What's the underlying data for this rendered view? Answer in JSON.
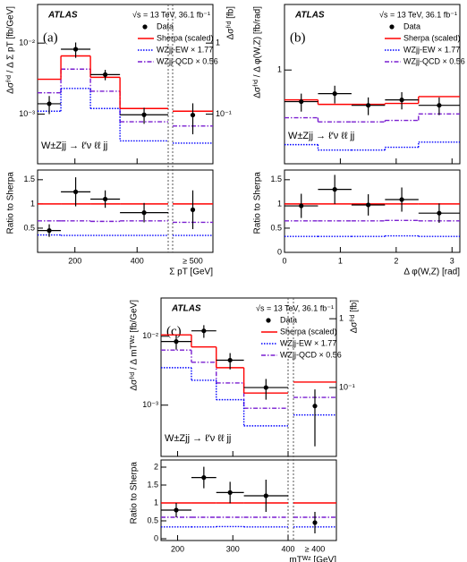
{
  "chart_data": [
    {
      "type": "histogram",
      "log_y": true,
      "label": "(a)",
      "experiment": "ATLAS",
      "energy": "√s = 13 TeV, 36.1 fb⁻¹",
      "process": "W±Zjj → ℓ′ν ℓℓ jj",
      "ylabel": "Δσᶠⁱᵈ / Δ Σ pT [fb/GeV]",
      "y2label": "Δσᶠⁱᵈ [fb]",
      "xlabel": "Σ pT [GeV]",
      "ratio_ylabel": "Ratio to Sherpa",
      "bins": [
        80,
        155,
        250,
        345,
        500
      ],
      "xlim": [
        80,
        500
      ],
      "xticks": [
        200,
        400
      ],
      "overflow_label": "≥ 500",
      "ylim": [
        0.0002,
        0.035
      ],
      "yticks": [
        {
          "value": 0.001,
          "label": "10⁻³"
        },
        {
          "value": 0.01,
          "label": "10⁻²"
        }
      ],
      "y2lim": [
        0.02,
        3.5
      ],
      "y2ticks": [
        {
          "value": 0.1,
          "label": "10⁻¹"
        },
        1
      ],
      "series": [
        {
          "name": "Data",
          "color": "#000000",
          "marker": "circle",
          "values": [
            0.0014,
            0.0082,
            0.0036,
            0.00098
          ],
          "errors": [
            0.0004,
            0.002,
            0.0006,
            0.00025
          ],
          "overflow": 0.097,
          "overflow_error": 0.045
        },
        {
          "name": "Sherpa (scaled)",
          "color": "#ff0000",
          "line_style": "solid",
          "values": [
            0.0031,
            0.0066,
            0.0033,
            0.0012
          ],
          "overflow": 0.11
        },
        {
          "name": "WZjj-EW × 1.77",
          "color": "#0000ff",
          "line_style": "dotted",
          "values": [
            0.0011,
            0.0023,
            0.0012,
            0.00042
          ],
          "overflow": 0.039
        },
        {
          "name": "WZjj-QCD × 0.56",
          "color": "#7a1fd0",
          "line_style": "dashdot",
          "values": [
            0.002,
            0.0043,
            0.0021,
            0.00078
          ],
          "overflow": 0.068
        }
      ],
      "ratio": {
        "ylim": [
          0,
          1.7
        ],
        "yticks": [
          0.5,
          1,
          1.5
        ],
        "series": [
          {
            "values": [
              0.45,
              1.25,
              1.1,
              0.82
            ],
            "errors": [
              0.13,
              0.3,
              0.18,
              0.2
            ],
            "overflow": 0.88,
            "overflow_error": 0.4
          },
          {
            "values": [
              1,
              1,
              1,
              1
            ],
            "overflow": 1
          },
          {
            "values": [
              0.36,
              0.35,
              0.35,
              0.35
            ],
            "overflow": 0.35
          },
          {
            "values": [
              0.65,
              0.65,
              0.64,
              0.65
            ],
            "overflow": 0.62
          }
        ]
      }
    },
    {
      "type": "histogram",
      "log_y": true,
      "label": "(b)",
      "experiment": "ATLAS",
      "energy": "√s = 13 TeV, 36.1 fb⁻¹",
      "process": "W±Zjj → ℓ′ν ℓℓ jj",
      "ylabel": "Δσᶠⁱᵈ / Δ φ(W,Z) [fb/rad]",
      "xlabel": "Δ φ(W,Z) [rad]",
      "ratio_ylabel": "Ratio to Sherpa",
      "bins": [
        0,
        0.6,
        1.2,
        1.8,
        2.4,
        3.14
      ],
      "xlim": [
        0,
        3.14
      ],
      "xticks": [
        0,
        1,
        2,
        3
      ],
      "ylim": [
        0.1,
        5
      ],
      "yticks": [
        1
      ],
      "series": [
        {
          "name": "Data",
          "color": "#000000",
          "marker": "circle",
          "values": [
            0.46,
            0.56,
            0.42,
            0.48,
            0.42
          ],
          "errors": [
            0.1,
            0.12,
            0.09,
            0.1,
            0.09
          ]
        },
        {
          "name": "Sherpa (scaled)",
          "color": "#ff0000",
          "line_style": "solid",
          "values": [
            0.48,
            0.43,
            0.43,
            0.44,
            0.52
          ]
        },
        {
          "name": "WZjj-EW × 1.77",
          "color": "#0000ff",
          "line_style": "dotted",
          "values": [
            0.16,
            0.14,
            0.14,
            0.15,
            0.17
          ]
        },
        {
          "name": "WZjj-QCD × 0.56",
          "color": "#7a1fd0",
          "line_style": "dashdot",
          "values": [
            0.31,
            0.28,
            0.28,
            0.29,
            0.34
          ]
        }
      ],
      "ratio": {
        "ylim": [
          0,
          1.7
        ],
        "yticks": [
          0,
          0.5,
          1,
          1.5
        ],
        "series": [
          {
            "values": [
              0.96,
              1.3,
              0.98,
              1.09,
              0.81
            ],
            "errors": [
              0.25,
              0.3,
              0.22,
              0.25,
              0.2
            ]
          },
          {
            "values": [
              1,
              1,
              1,
              1,
              1
            ]
          },
          {
            "values": [
              0.33,
              0.33,
              0.33,
              0.34,
              0.33
            ]
          },
          {
            "values": [
              0.65,
              0.65,
              0.65,
              0.66,
              0.65
            ]
          }
        ]
      }
    },
    {
      "type": "histogram",
      "log_y": true,
      "label": "(c)",
      "experiment": "ATLAS",
      "energy": "√s = 13 TeV, 36.1 fb⁻¹",
      "process": "W±Zjj → ℓ′ν ℓℓ jj",
      "ylabel": "Δσᶠⁱᵈ / Δ mTᵂᶻ [fb/GeV]",
      "y2label": "Δσᶠⁱᵈ [fb]",
      "xlabel": "mTᵂᶻ [GeV]",
      "ratio_ylabel": "Ratio to Sherpa",
      "bins": [
        170,
        225,
        270,
        320,
        400
      ],
      "xlim": [
        170,
        400
      ],
      "xticks": [
        200,
        300,
        400
      ],
      "overflow_label": "≥ 400",
      "ylim": [
        0.00018,
        0.036
      ],
      "yticks": [
        {
          "value": 0.001,
          "label": "10⁻³"
        },
        {
          "value": 0.01,
          "label": "10⁻²"
        }
      ],
      "y2lim": [
        0.01,
        2
      ],
      "y2ticks": [
        {
          "value": 0.1,
          "label": "10⁻¹"
        },
        1
      ],
      "series": [
        {
          "name": "Data",
          "color": "#000000",
          "marker": "circle",
          "values": [
            0.0084,
            0.012,
            0.0045,
            0.0018
          ],
          "errors": [
            0.002,
            0.0025,
            0.0012,
            0.0006
          ],
          "overflow": 0.054,
          "overflow_error": 0.04
        },
        {
          "name": "Sherpa (scaled)",
          "color": "#ff0000",
          "line_style": "solid",
          "values": [
            0.0105,
            0.007,
            0.0035,
            0.0015
          ],
          "overflow": 0.12
        },
        {
          "name": "WZjj-EW × 1.77",
          "color": "#0000ff",
          "line_style": "dotted",
          "values": [
            0.0035,
            0.0023,
            0.0012,
            0.0005
          ],
          "overflow": 0.04
        },
        {
          "name": "WZjj-QCD × 0.56",
          "color": "#7a1fd0",
          "line_style": "dashdot",
          "values": [
            0.0063,
            0.0042,
            0.0021,
            0.0009
          ],
          "overflow": 0.072
        }
      ],
      "ratio": {
        "ylim": [
          -0.05,
          2.2
        ],
        "yticks": [
          0,
          0.5,
          1,
          1.5,
          2
        ],
        "series": [
          {
            "values": [
              0.8,
              1.71,
              1.29,
              1.2
            ],
            "errors": [
              0.2,
              0.3,
              0.3,
              0.45
            ],
            "overflow": 0.45,
            "overflow_error": 0.3
          },
          {
            "values": [
              1,
              1,
              1,
              1
            ],
            "overflow": 1
          },
          {
            "values": [
              0.33,
              0.33,
              0.34,
              0.33
            ],
            "overflow": 0.33
          },
          {
            "values": [
              0.6,
              0.6,
              0.6,
              0.6
            ],
            "overflow": 0.6
          }
        ]
      }
    }
  ]
}
